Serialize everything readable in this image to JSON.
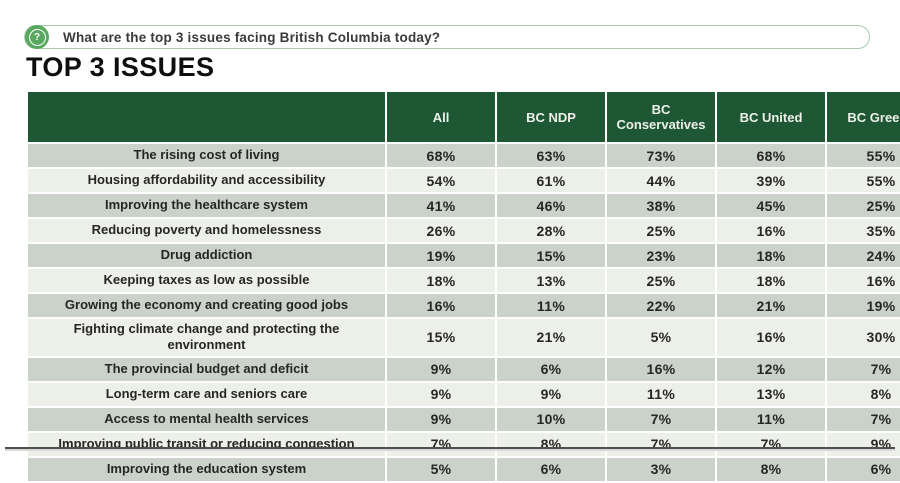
{
  "question_bar": {
    "icon_glyph": "?",
    "text": "What are the top 3 issues facing British Columbia today?"
  },
  "page_title": "TOP 3 ISSUES",
  "colors": {
    "header_green": "#1d5733",
    "accent_green": "#58a95f",
    "border_green": "#a8cbad",
    "row_dark": "#cbd2ca",
    "row_light": "#edf0e9"
  },
  "chart_data": {
    "type": "table",
    "title": "TOP 3 ISSUES",
    "question": "What are the top 3 issues facing British Columbia today?",
    "columns": [
      "",
      "All",
      "BC NDP",
      "BC Conservatives",
      "BC United",
      "BC Greens"
    ],
    "rows": [
      {
        "issue": "The rising cost of living",
        "values": [
          "68%",
          "63%",
          "73%",
          "68%",
          "55%"
        ]
      },
      {
        "issue": "Housing affordability and accessibility",
        "values": [
          "54%",
          "61%",
          "44%",
          "39%",
          "55%"
        ]
      },
      {
        "issue": "Improving the healthcare system",
        "values": [
          "41%",
          "46%",
          "38%",
          "45%",
          "25%"
        ]
      },
      {
        "issue": "Reducing poverty and homelessness",
        "values": [
          "26%",
          "28%",
          "25%",
          "16%",
          "35%"
        ]
      },
      {
        "issue": "Drug addiction",
        "values": [
          "19%",
          "15%",
          "23%",
          "18%",
          "24%"
        ]
      },
      {
        "issue": "Keeping taxes as low as possible",
        "values": [
          "18%",
          "13%",
          "25%",
          "18%",
          "16%"
        ]
      },
      {
        "issue": "Growing the economy and creating good jobs",
        "values": [
          "16%",
          "11%",
          "22%",
          "21%",
          "19%"
        ]
      },
      {
        "issue": "Fighting climate change and protecting the environment",
        "values": [
          "15%",
          "21%",
          "5%",
          "16%",
          "30%"
        ]
      },
      {
        "issue": "The provincial budget and deficit",
        "values": [
          "9%",
          "6%",
          "16%",
          "12%",
          "7%"
        ]
      },
      {
        "issue": "Long-term care and seniors care",
        "values": [
          "9%",
          "9%",
          "11%",
          "13%",
          "8%"
        ]
      },
      {
        "issue": "Access to mental health services",
        "values": [
          "9%",
          "10%",
          "7%",
          "11%",
          "7%"
        ]
      },
      {
        "issue": "Improving public transit or reducing congestion",
        "values": [
          "7%",
          "8%",
          "7%",
          "7%",
          "9%"
        ]
      },
      {
        "issue": "Improving the education system",
        "values": [
          "5%",
          "6%",
          "3%",
          "8%",
          "6%"
        ]
      }
    ]
  }
}
